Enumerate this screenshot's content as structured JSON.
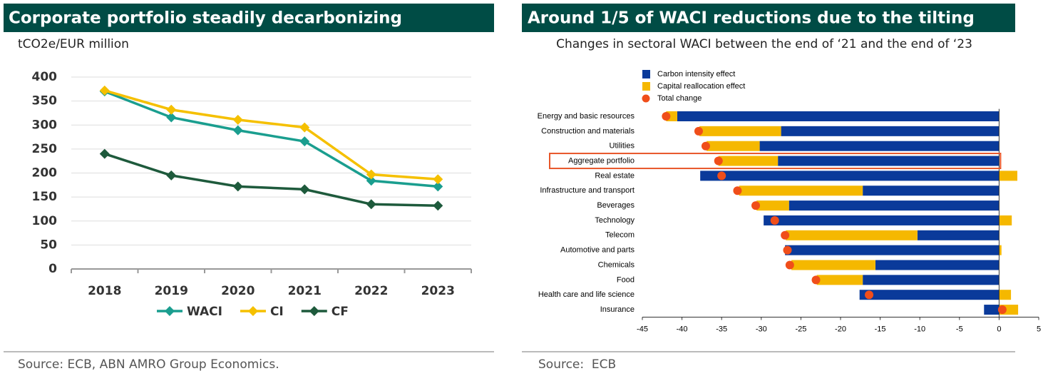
{
  "chart_data": [
    {
      "type": "line",
      "title": "Corporate portfolio steadily decarbonizing",
      "y_label": "tCO2e/EUR million",
      "categories": [
        "2018",
        "2019",
        "2020",
        "2021",
        "2022",
        "2023"
      ],
      "series": [
        {
          "name": "WACI",
          "color": "#1a9e8f",
          "values": [
            370,
            316,
            289,
            266,
            184,
            172
          ]
        },
        {
          "name": "CI",
          "color": "#f5c000",
          "values": [
            372,
            332,
            311,
            295,
            197,
            187
          ]
        },
        {
          "name": "CF",
          "color": "#1e5a3c",
          "values": [
            240,
            195,
            172,
            166,
            135,
            132
          ]
        }
      ],
      "ylim": [
        0,
        400
      ],
      "yticks": [
        0,
        50,
        100,
        150,
        200,
        250,
        300,
        350,
        400
      ],
      "grid": true,
      "legend": "bottom",
      "source": "Source: ECB, ABN AMRO Group Economics."
    },
    {
      "type": "bar",
      "title": "Around 1/5 of WACI reductions due to the tilting",
      "subtitle": "Changes in sectoral WACI between the end of ‘21 and the end of ‘23",
      "orientation": "horizontal",
      "stacked": true,
      "categories": [
        "Energy and basic resources",
        "Construction and materials",
        "Utilities",
        "Aggregate portfolio",
        "Real estate",
        "Infrastructure and transport",
        "Beverages",
        "Technology",
        "Telecom",
        "Automotive and parts",
        "Chemicals",
        "Food",
        "Health care and life science",
        "Insurance"
      ],
      "series": [
        {
          "name": "Carbon intensity effect",
          "color": "#0a3a9a",
          "values": [
            -40.6,
            -27.5,
            -30.2,
            -27.9,
            -37.7,
            -17.2,
            -26.5,
            -29.7,
            -10.3,
            -27,
            -15.6,
            -17.2,
            -17.6,
            -1.9
          ]
        },
        {
          "name": "Capital reallocation effect",
          "color": "#f5b800",
          "values": [
            -1.4,
            -10.3,
            -6.7,
            -7.5,
            2.3,
            -15.6,
            -4.1,
            1.6,
            -16.6,
            0.3,
            -10.6,
            -5.8,
            1.5,
            2.4
          ]
        },
        {
          "name": "Total change",
          "color": "#f04e1a",
          "type": "scatter",
          "values": [
            -42,
            -37.9,
            -37,
            -35.4,
            -35,
            -33,
            -30.7,
            -28.3,
            -27,
            -26.7,
            -26.4,
            -23.1,
            -16.4,
            0.4
          ]
        }
      ],
      "xlim": [
        -45,
        5
      ],
      "xticks": [
        -45,
        -40,
        -35,
        -30,
        -25,
        -20,
        -15,
        -10,
        -5,
        0,
        5
      ],
      "highlight_category": 3,
      "legend": "top-left",
      "source": "Source:  ECB"
    }
  ]
}
